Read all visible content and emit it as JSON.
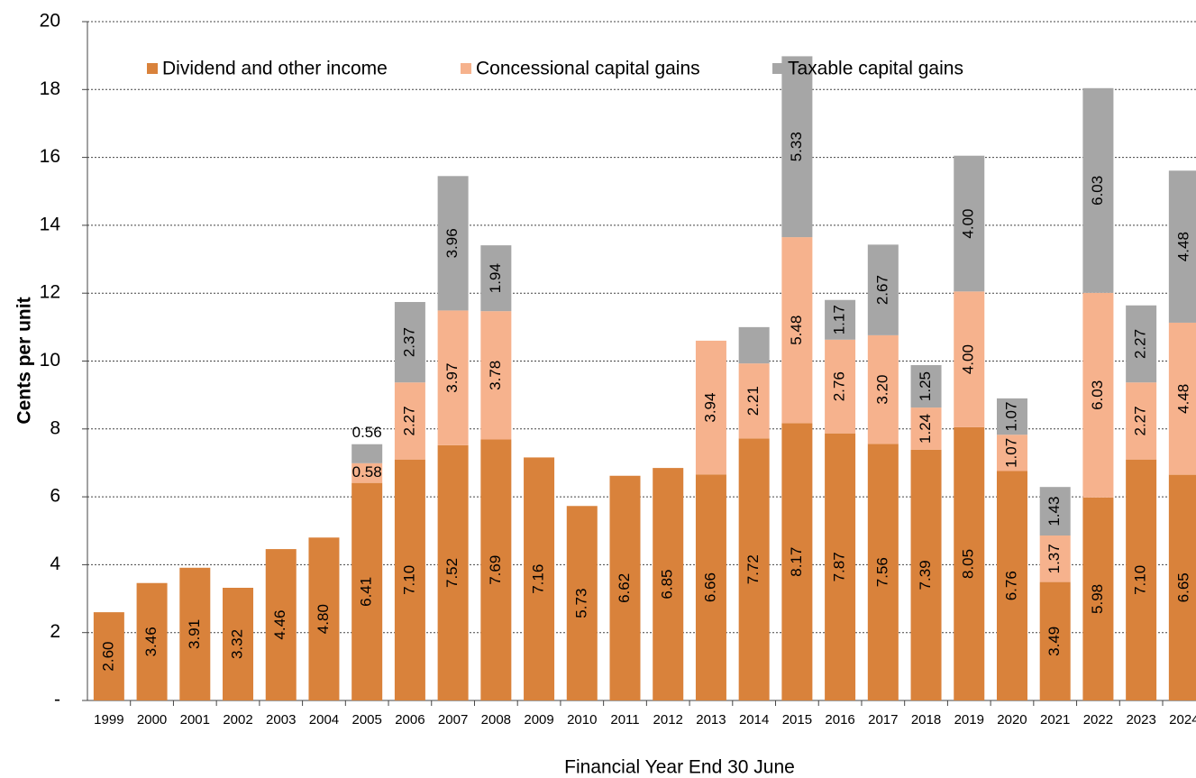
{
  "chart_data": {
    "type": "stacked_bar",
    "x_label": "Financial Year End 30 June",
    "y_label": "Cents per unit",
    "categories": [
      "1999",
      "2000",
      "2001",
      "2002",
      "2003",
      "2004",
      "2005",
      "2006",
      "2007",
      "2008",
      "2009",
      "2010",
      "2011",
      "2012",
      "2013",
      "2014",
      "2015",
      "2016",
      "2017",
      "2018",
      "2019",
      "2020",
      "2021",
      "2022",
      "2023",
      "2024"
    ],
    "series": [
      {
        "name": "Dividend and other income",
        "color": "#d9823b",
        "values": [
          2.6,
          3.46,
          3.91,
          3.32,
          4.46,
          4.8,
          6.41,
          7.1,
          7.52,
          7.69,
          7.16,
          5.73,
          6.62,
          6.85,
          6.66,
          7.72,
          8.17,
          7.87,
          7.56,
          7.39,
          8.05,
          6.76,
          3.49,
          5.98,
          7.1,
          6.65
        ],
        "value_labels": [
          "2.60",
          "3.46",
          "3.91",
          "3.32",
          "4.46",
          "4.80",
          "6.41",
          "7.10",
          "7.52",
          "7.69",
          "7.16",
          "5.73",
          "6.62",
          "6.85",
          "6.66",
          "7.72",
          "8.17",
          "7.87",
          "7.56",
          "7.39",
          "8.05",
          "6.76",
          "3.49",
          "5.98",
          "7.10",
          "6.65"
        ]
      },
      {
        "name": "Concessional capital gains",
        "color": "#f6b28d",
        "values": [
          null,
          null,
          null,
          null,
          null,
          null,
          0.58,
          2.27,
          3.97,
          3.78,
          null,
          null,
          null,
          null,
          3.94,
          2.21,
          5.48,
          2.76,
          3.2,
          1.24,
          4.0,
          1.07,
          1.37,
          6.03,
          2.27,
          4.48
        ],
        "value_labels": [
          null,
          null,
          null,
          null,
          null,
          null,
          "0.58",
          "2.27",
          "3.97",
          "3.78",
          null,
          null,
          null,
          null,
          "3.94",
          "2.21",
          "5.48",
          "2.76",
          "3.20",
          "1.24",
          "4.00",
          "1.07",
          "1.37",
          "6.03",
          "2.27",
          "4.48"
        ]
      },
      {
        "name": "Taxable capital gains",
        "color": "#a6a6a6",
        "values": [
          null,
          null,
          null,
          null,
          null,
          null,
          0.56,
          2.37,
          3.96,
          1.94,
          null,
          null,
          null,
          null,
          null,
          1.07,
          5.33,
          1.17,
          2.67,
          1.25,
          4.0,
          1.07,
          1.43,
          6.03,
          2.27,
          4.48
        ],
        "value_labels": [
          null,
          null,
          null,
          null,
          null,
          null,
          "0.56",
          "2.37",
          "3.96",
          "1.94",
          null,
          null,
          null,
          null,
          null,
          null,
          "5.33",
          "1.17",
          "2.67",
          "1.25",
          "4.00",
          "1.07",
          "1.43",
          "6.03",
          "2.27",
          "4.48"
        ]
      }
    ],
    "ylim": [
      0,
      20
    ],
    "yticks": [
      {
        "value": 0,
        "label": "-"
      },
      2,
      4,
      6,
      8,
      10,
      12,
      14,
      16,
      18,
      20
    ],
    "grid": true,
    "legend": "top"
  }
}
